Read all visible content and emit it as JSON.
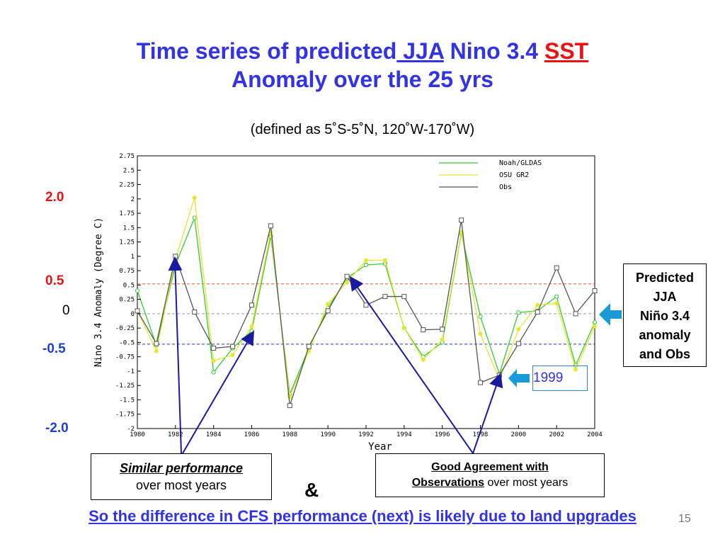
{
  "title": {
    "line1_a": "Time series of predicted",
    "line1_b": " JJA",
    "line1_c": " Nino 3.4 ",
    "line1_d": "SST",
    "line2": "Anomaly over the 25 yrs"
  },
  "subtitle": "(defined as 5˚S-5˚N, 120˚W-170˚W)",
  "side_labels": [
    {
      "text": "2.0",
      "color": "#ee1111"
    },
    {
      "text": "0.5",
      "color": "#ee1111"
    },
    {
      "text": "0",
      "color": "#000000"
    },
    {
      "text": "-0.5",
      "color": "#1f3fd0"
    },
    {
      "text": "-2.0",
      "color": "#1f3fd0"
    }
  ],
  "callouts": {
    "predicted": [
      "Predicted",
      "JJA",
      "Niño 3.4",
      "anomaly",
      "and Obs"
    ],
    "year_box": "1999",
    "similar": {
      "emph": "Similar performance",
      "rest": "over most years"
    },
    "good": {
      "emph1": "Good Agreement with",
      "emph2": "Observations",
      "rest": " over most years"
    },
    "amp": "&"
  },
  "bottom_text": "So the difference in CFS performance (next) is likely due to land upgrades",
  "slide_number": "15",
  "colors": {
    "title": "#3333e6",
    "noah": "#33cc33",
    "osu": "#e6e633",
    "obs": "#555555",
    "ref_red": "#ee5533",
    "ref_blue": "#2233cc",
    "arrow": "#1a1aa0",
    "block_arrow": "#1a9ad6"
  },
  "chart_data": {
    "type": "line",
    "xlabel": "Year",
    "ylabel": "Nino 3.4 Anomaly (Degree C)",
    "xlim": [
      1980,
      2004
    ],
    "ylim": [
      -2,
      2.75
    ],
    "x_ticks": [
      "1980",
      "1982",
      "1984",
      "1986",
      "1988",
      "1990",
      "1992",
      "1994",
      "1996",
      "1998",
      "2000",
      "2002",
      "2004"
    ],
    "y_ticks": [
      "2.75",
      "2.5",
      "2.25",
      "2",
      "1.75",
      "1.5",
      "1.25",
      "1",
      "0.75",
      "0.5",
      "0.25",
      "0",
      "-0.25",
      "-0.5",
      "-0.75",
      "-1",
      "-1.25",
      "-1.5",
      "-1.75",
      "-2"
    ],
    "x": [
      1980,
      1981,
      1982,
      1983,
      1984,
      1985,
      1986,
      1987,
      1988,
      1989,
      1990,
      1991,
      1992,
      1993,
      1994,
      1995,
      1996,
      1997,
      1998,
      1999,
      2000,
      2001,
      2002,
      2003,
      2004
    ],
    "series": [
      {
        "name": "Noah/GLDAS",
        "color": "#33cc33",
        "values": [
          0.4,
          -0.55,
          0.85,
          1.67,
          -1.02,
          -0.6,
          -0.3,
          1.35,
          -1.4,
          -0.6,
          0.1,
          0.62,
          0.85,
          0.87,
          -0.25,
          -0.75,
          -0.5,
          1.4,
          -0.05,
          -1.05,
          0.02,
          0.05,
          0.3,
          -0.9,
          -0.15
        ]
      },
      {
        "name": "OSU GR2",
        "color": "#e6e633",
        "values": [
          0.05,
          -0.65,
          0.95,
          2.02,
          -0.82,
          -0.72,
          -0.22,
          1.42,
          -1.45,
          -0.65,
          0.17,
          0.55,
          0.93,
          0.93,
          -0.25,
          -0.8,
          -0.45,
          1.42,
          -0.35,
          -1.15,
          -0.27,
          0.15,
          0.18,
          -0.97,
          -0.22
        ]
      },
      {
        "name": "Obs",
        "color": "#555555",
        "values": [
          0.05,
          -0.52,
          1.0,
          0.03,
          -0.6,
          -0.57,
          0.15,
          1.53,
          -1.6,
          -0.57,
          0.05,
          0.65,
          0.15,
          0.3,
          0.3,
          -0.28,
          -0.27,
          1.63,
          -1.2,
          -1.07,
          -0.52,
          0.03,
          0.8,
          0.0,
          0.4
        ]
      }
    ],
    "reference_lines": [
      0.52,
      0.0,
      -0.53
    ],
    "legend": "top-right",
    "grid": false
  }
}
